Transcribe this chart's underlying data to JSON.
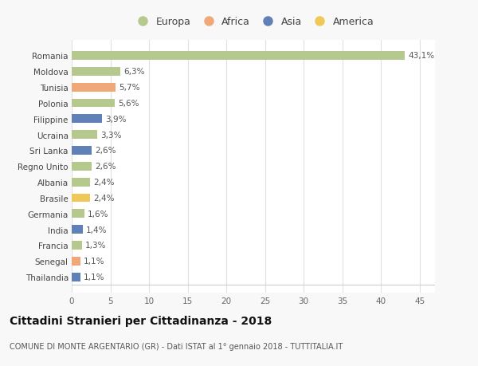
{
  "countries": [
    "Romania",
    "Moldova",
    "Tunisia",
    "Polonia",
    "Filippine",
    "Ucraina",
    "Sri Lanka",
    "Regno Unito",
    "Albania",
    "Brasile",
    "Germania",
    "India",
    "Francia",
    "Senegal",
    "Thailandia"
  ],
  "values": [
    43.1,
    6.3,
    5.7,
    5.6,
    3.9,
    3.3,
    2.6,
    2.6,
    2.4,
    2.4,
    1.6,
    1.4,
    1.3,
    1.1,
    1.1
  ],
  "labels": [
    "43,1%",
    "6,3%",
    "5,7%",
    "5,6%",
    "3,9%",
    "3,3%",
    "2,6%",
    "2,6%",
    "2,4%",
    "2,4%",
    "1,6%",
    "1,4%",
    "1,3%",
    "1,1%",
    "1,1%"
  ],
  "continents": [
    "Europa",
    "Europa",
    "Africa",
    "Europa",
    "Asia",
    "Europa",
    "Asia",
    "Europa",
    "Europa",
    "America",
    "Europa",
    "Asia",
    "Europa",
    "Africa",
    "Asia"
  ],
  "continent_colors": {
    "Europa": "#b5c98e",
    "Africa": "#f0a878",
    "Asia": "#6080b8",
    "America": "#f0c858"
  },
  "legend_order": [
    "Europa",
    "Africa",
    "Asia",
    "America"
  ],
  "xlim": [
    0,
    47
  ],
  "xticks": [
    0,
    5,
    10,
    15,
    20,
    25,
    30,
    35,
    40,
    45
  ],
  "title": "Cittadini Stranieri per Cittadinanza - 2018",
  "subtitle": "COMUNE DI MONTE ARGENTARIO (GR) - Dati ISTAT al 1° gennaio 2018 - TUTTITALIA.IT",
  "bg_color": "#f8f8f8",
  "plot_bg_color": "#ffffff",
  "grid_color": "#e0e0e0",
  "bar_height": 0.55,
  "label_fontsize": 7.5,
  "ytick_fontsize": 7.5,
  "xtick_fontsize": 7.5,
  "title_fontsize": 10,
  "subtitle_fontsize": 7,
  "legend_fontsize": 9
}
